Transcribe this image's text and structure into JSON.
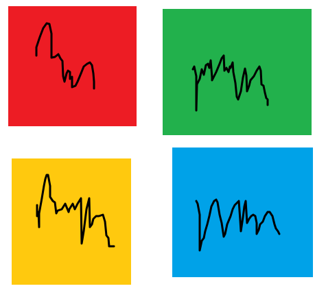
{
  "tiles": [
    {
      "id": "red",
      "color": "#ed1c24"
    },
    {
      "id": "green",
      "color": "#22b14c"
    },
    {
      "id": "yellow",
      "color": "#ffc90e"
    },
    {
      "id": "blue",
      "color": "#00a2e8"
    }
  ],
  "scribble_color": "#000000"
}
